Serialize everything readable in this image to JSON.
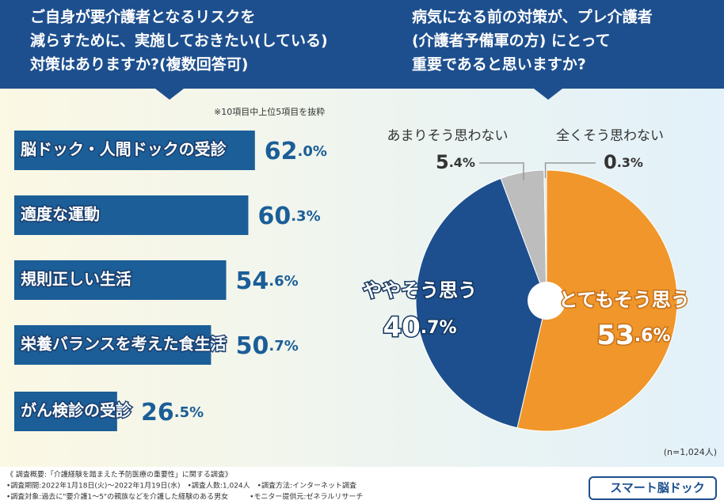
{
  "header": {
    "left_title": [
      "ご自身が要介護者となるリスクを",
      "減らすために、実施しておきたい(している)",
      "対策はありますか?(複数回答可)"
    ],
    "right_title": [
      "病気になる前の対策が、プレ介護者",
      "(介護者予備軍の方) にとって",
      "重要であると思いますか?"
    ]
  },
  "chart_data": [
    {
      "type": "bar",
      "note": "※10項目中上位5項目を抜粋",
      "categories": [
        "脳ドック・人間ドックの受診",
        "適度な運動",
        "規則正しい生活",
        "栄養バランスを考えた食生活",
        "がん検診の受診"
      ],
      "values": [
        62.0,
        60.3,
        54.6,
        50.7,
        26.5
      ],
      "value_labels": [
        "62.0%",
        "60.3%",
        "54.6%",
        "50.7%",
        "26.5%"
      ],
      "color": "#1b5e98"
    },
    {
      "type": "pie",
      "categories": [
        "とてもそう思う",
        "ややそう思う",
        "あまりそう思わない",
        "全くそう思わない"
      ],
      "values": [
        53.6,
        40.7,
        5.4,
        0.3
      ],
      "value_labels": [
        "53.6%",
        "40.7%",
        "5.4%",
        "0.3%"
      ],
      "colors": [
        "#f0962a",
        "#1d4f8e",
        "#bdbdbd",
        "#e8e8e8"
      ],
      "note": "(n=1,024人)"
    }
  ],
  "footer": {
    "lines": [
      "《 調査概要:「介護経験を踏まえた予防医療の重要性」に関する調査》",
      "•調査期間:2022年1月18日(火)〜2022年1月19日(水)　•調査人数:1,024人　•調査方法:インターネット調査",
      "•調査対象:過去に\"要介護1〜5\"の親族などを介護した経験のある男女　　　•モニター提供元:ゼネラルリサーチ"
    ],
    "logo": "スマート脳ドック"
  }
}
